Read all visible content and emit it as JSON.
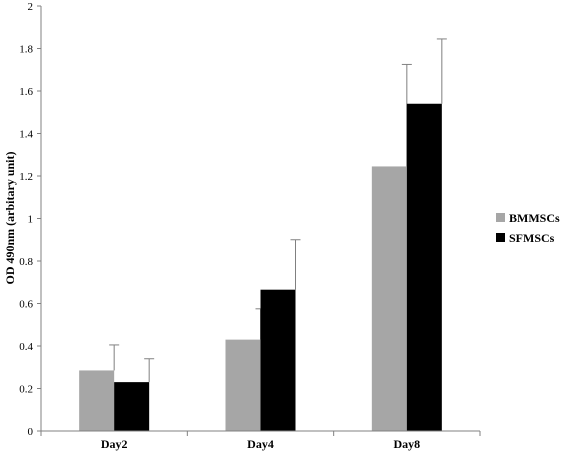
{
  "chart_data": {
    "type": "bar",
    "title": "",
    "xlabel": "",
    "ylabel": "OD 490nm (arbitary unit)",
    "ylim": [
      0,
      2
    ],
    "yticks": [
      "0",
      "0.2",
      "0.4",
      "0.6",
      "0.8",
      "1",
      "1.2",
      "1.4",
      "1.6",
      "1.8",
      "2"
    ],
    "categories": [
      "Day2",
      "Day4",
      "Day8"
    ],
    "grid": false,
    "legend_position": "right",
    "series": [
      {
        "name": "BMMSCs",
        "color": "#a6a6a6",
        "values": [
          0.285,
          0.43,
          1.245
        ],
        "errors": [
          0.12,
          0.145,
          0.48
        ]
      },
      {
        "name": "SFMSCs",
        "color": "#000000",
        "values": [
          0.23,
          0.665,
          1.54
        ],
        "errors": [
          0.11,
          0.235,
          0.305
        ]
      }
    ]
  }
}
